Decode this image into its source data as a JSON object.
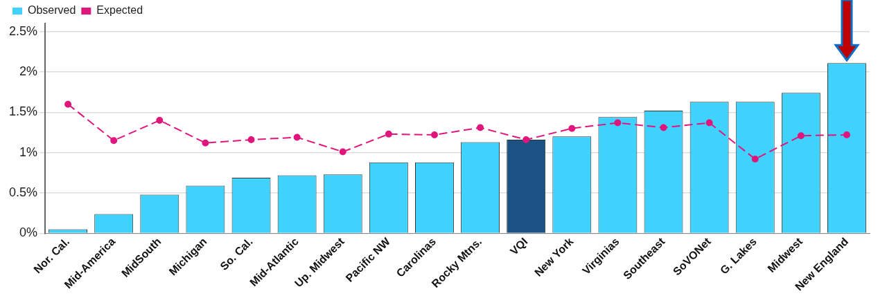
{
  "chart_data": {
    "type": "bar",
    "categories": [
      "Nor. Cal.",
      "Mid-America",
      "MidSouth",
      "Michigan",
      "So. Cal.",
      "Mid-Atlantic",
      "Up. Midwest",
      "Pacific NW",
      "Carolinas",
      "Rocky Mtns.",
      "VQI",
      "New York",
      "Virginias",
      "Southeast",
      "SoVONet",
      "G. Lakes",
      "Midwest",
      "New England"
    ],
    "series": [
      {
        "name": "Observed",
        "color": "#3fd2fc",
        "colors": [
          "#3fd2fc",
          "#3fd2fc",
          "#3fd2fc",
          "#3fd2fc",
          "#3fd2fc",
          "#3fd2fc",
          "#3fd2fc",
          "#3fd2fc",
          "#3fd2fc",
          "#3fd2fc",
          "#1a5284",
          "#3fd2fc",
          "#3fd2fc",
          "#3fd2fc",
          "#3fd2fc",
          "#3fd2fc",
          "#3fd2fc",
          "#3fd2fc"
        ],
        "values": [
          0.05,
          0.24,
          0.48,
          0.59,
          0.69,
          0.72,
          0.73,
          0.88,
          0.88,
          1.13,
          1.16,
          1.2,
          1.44,
          1.52,
          1.63,
          1.63,
          1.74,
          2.11
        ]
      },
      {
        "name": "Expected",
        "type": "line",
        "color": "#e0167c",
        "marker": "circle",
        "line_style": "dashed",
        "values": [
          1.6,
          1.15,
          1.4,
          1.12,
          1.16,
          1.19,
          1.01,
          1.23,
          1.22,
          1.31,
          1.16,
          1.3,
          1.37,
          1.31,
          1.37,
          0.92,
          1.21,
          1.22
        ]
      }
    ],
    "ylim": [
      0,
      2.6
    ],
    "yticks": [
      {
        "value": 0,
        "label": "0%"
      },
      {
        "value": 0.5,
        "label": "0.5%"
      },
      {
        "value": 1,
        "label": "1%"
      },
      {
        "value": 1.5,
        "label": "1.5%"
      },
      {
        "value": 2,
        "label": "2%"
      },
      {
        "value": 2.5,
        "label": "2.5%"
      }
    ],
    "grid": "y",
    "legend": "top left"
  }
}
